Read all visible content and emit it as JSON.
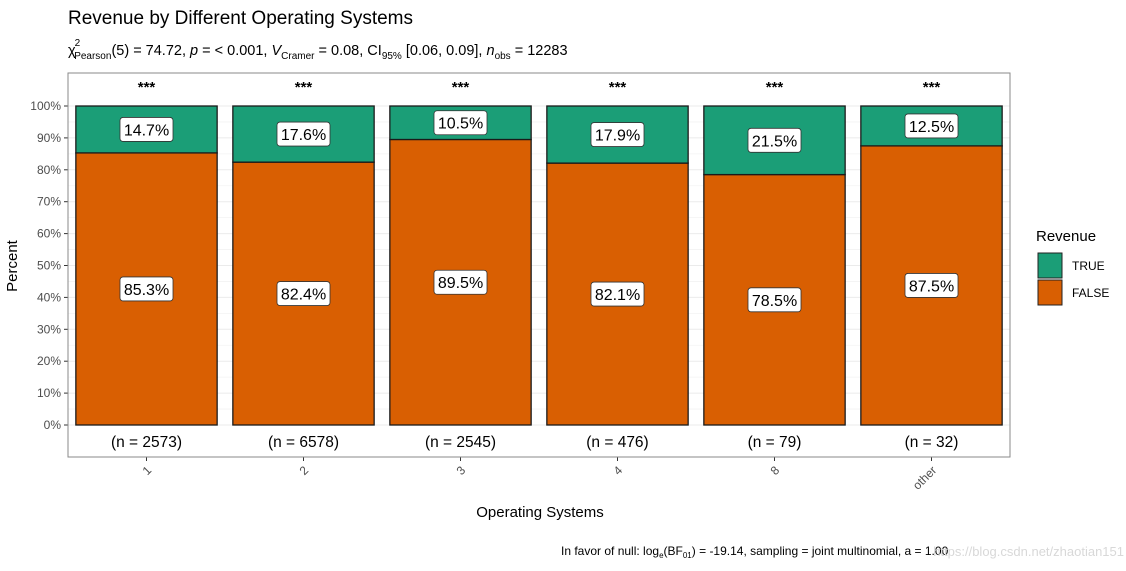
{
  "chart_data": {
    "type": "bar",
    "stacked": true,
    "title": "Revenue by Different Operating Systems",
    "subtitle": {
      "chi_symbol": "χ",
      "chi_sup": "2",
      "chi_sub": "Pearson",
      "df": "(5) = 74.72, ",
      "p_label": "p",
      "p_value": " = < 0.001, ",
      "v_label": "V",
      "v_sub": "Cramer",
      "v_value": " = 0.08, CI",
      "ci_sub": "95%",
      "ci_value": " [0.06, 0.09], ",
      "n_label": "n",
      "n_sub": "obs",
      "n_value": " = 12283"
    },
    "xlabel": "Operating Systems",
    "ylabel": "Percent",
    "ylim": [
      0,
      100
    ],
    "y_ticks": [
      "0%",
      "10%",
      "20%",
      "30%",
      "40%",
      "50%",
      "60%",
      "70%",
      "80%",
      "90%",
      "100%"
    ],
    "categories": [
      "1",
      "2",
      "3",
      "4",
      "8",
      "other"
    ],
    "series": [
      {
        "name": "FALSE",
        "color": "#D95F02",
        "values": [
          85.3,
          82.4,
          89.5,
          82.1,
          78.5,
          87.5
        ],
        "labels": [
          "85.3%",
          "82.4%",
          "89.5%",
          "82.1%",
          "78.5%",
          "87.5%"
        ]
      },
      {
        "name": "TRUE",
        "color": "#1B9E77",
        "values": [
          14.7,
          17.6,
          10.5,
          17.9,
          21.5,
          12.5
        ],
        "labels": [
          "14.7%",
          "17.6%",
          "10.5%",
          "17.9%",
          "21.5%",
          "12.5%"
        ]
      }
    ],
    "n_labels": [
      "(n = 2573)",
      "(n = 6578)",
      "(n = 2545)",
      "(n = 476)",
      "(n = 79)",
      "(n = 32)"
    ],
    "significance": [
      "***",
      "***",
      "***",
      "***",
      "***",
      "***"
    ],
    "legend": {
      "title": "Revenue",
      "position": "right",
      "items": [
        {
          "label": "TRUE",
          "color": "#1B9E77"
        },
        {
          "label": "FALSE",
          "color": "#D95F02"
        }
      ]
    },
    "caption": {
      "prefix": "In favor of null: log",
      "log_sub": "e",
      "bf": "(BF",
      "bf_sub": "01",
      "rest": ") = -19.14, sampling = joint multinomial, a = 1.00"
    },
    "watermark": "https://blog.csdn.net/zhaotian151",
    "grid": true
  }
}
